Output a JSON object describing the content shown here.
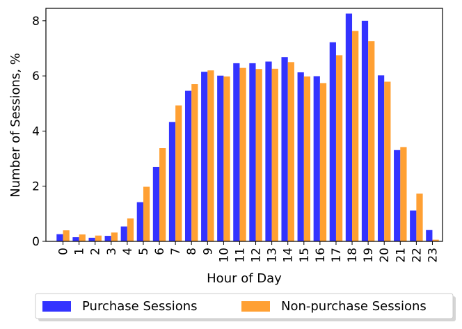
{
  "chart_data": {
    "type": "bar",
    "xlabel": "Hour of Day",
    "ylabel": "Number of Sessions, %",
    "categories": [
      "0",
      "1",
      "2",
      "3",
      "4",
      "5",
      "6",
      "7",
      "8",
      "9",
      "10",
      "11",
      "12",
      "13",
      "14",
      "15",
      "16",
      "17",
      "18",
      "19",
      "20",
      "21",
      "22",
      "23"
    ],
    "ylim": [
      0,
      8.45
    ],
    "yticks": [
      "0",
      "2",
      "4",
      "6",
      "8"
    ],
    "grid": false,
    "legend_position": "bottom-center",
    "series": [
      {
        "name": "Purchase Sessions",
        "color": "#3333ff",
        "values": [
          0.26,
          0.15,
          0.13,
          0.2,
          0.54,
          1.42,
          2.7,
          4.33,
          5.46,
          6.15,
          6.01,
          6.46,
          6.46,
          6.52,
          6.68,
          6.13,
          5.99,
          7.22,
          8.26,
          8.0,
          6.02,
          3.31,
          1.12,
          0.41
        ]
      },
      {
        "name": "Non-purchase Sessions",
        "color": "#ffa033",
        "values": [
          0.4,
          0.25,
          0.21,
          0.32,
          0.83,
          1.98,
          3.38,
          4.93,
          5.7,
          6.2,
          5.98,
          6.29,
          6.25,
          6.26,
          6.5,
          5.98,
          5.74,
          6.75,
          7.63,
          7.26,
          5.79,
          3.42,
          1.73,
          0.06
        ]
      }
    ]
  }
}
